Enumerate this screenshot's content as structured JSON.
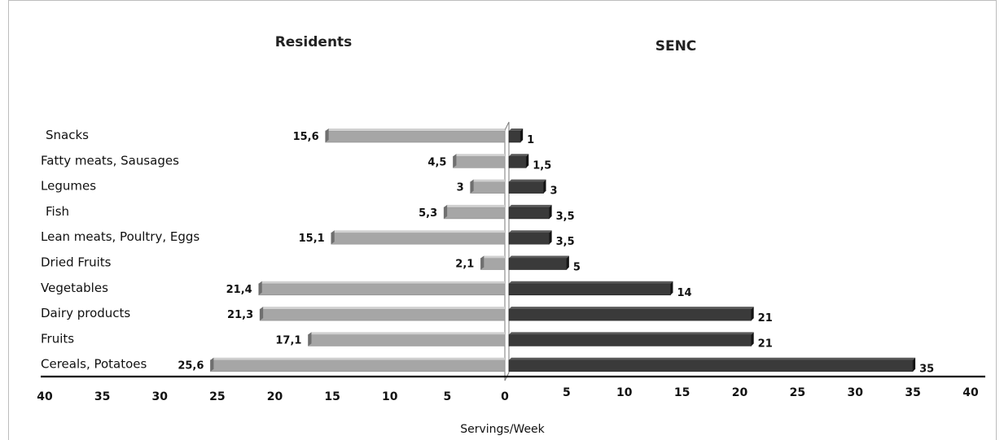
{
  "chart_data": {
    "type": "bar",
    "orientation": "horizontal-diverging",
    "panels": [
      "Residents",
      "SENC"
    ],
    "categories": [
      "Snacks",
      "Fatty meats, Sausages",
      "Legumes",
      "Fish",
      "Lean meats, Poultry, Eggs",
      "Dried Fruits",
      "Vegetables",
      "Dairy products",
      "Fruits",
      "Cereals, Potatoes"
    ],
    "series": [
      {
        "name": "Residents",
        "values": [
          15.6,
          4.5,
          3,
          5.3,
          15.1,
          2.1,
          21.4,
          21.3,
          17.1,
          25.6
        ],
        "labels": [
          "15,6",
          "4,5",
          "3",
          "5,3",
          "15,1",
          "2,1",
          "21,4",
          "21,3",
          "17,1",
          "25,6"
        ],
        "color": "#a6a6a6",
        "direction": "left"
      },
      {
        "name": "SENC",
        "values": [
          1,
          1.5,
          3,
          3.5,
          3.5,
          5,
          14,
          21,
          21,
          35
        ],
        "labels": [
          "1",
          "1,5",
          "3",
          "3,5",
          "3,5",
          "5",
          "14",
          "21",
          "21",
          "35"
        ],
        "color": "#3a3a3a",
        "direction": "right"
      }
    ],
    "xlabel": "Servings/Week",
    "xlim": [
      0,
      40
    ],
    "left_ticks": [
      "40",
      "35",
      "30",
      "25",
      "20",
      "15",
      "10",
      "5",
      "0"
    ],
    "right_ticks": [
      "5",
      "10",
      "15",
      "20",
      "25",
      "30",
      "35",
      "40"
    ],
    "grid": false,
    "legend": "none"
  }
}
